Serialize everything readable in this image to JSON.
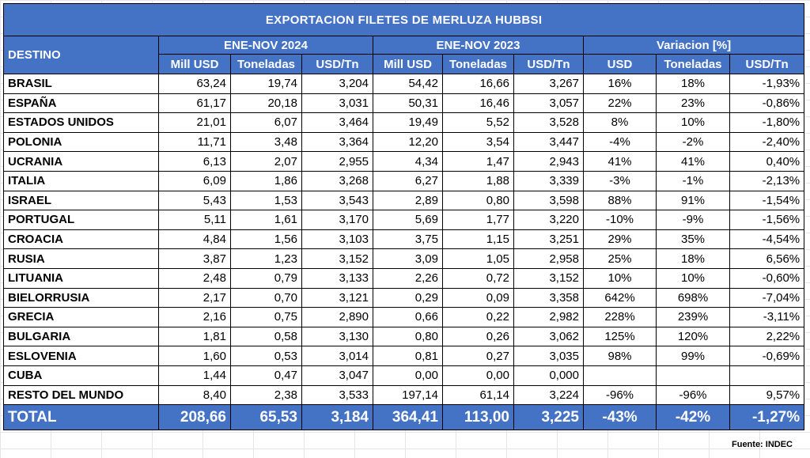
{
  "title": "EXPORTACION FILETES DE MERLUZA HUBBSI",
  "header": {
    "destino": "DESTINO",
    "group_2024": "ENE-NOV 2024",
    "group_2023": "ENE-NOV 2023",
    "group_var": "Variacion [%]",
    "sub_2024": [
      "Mill USD",
      "Toneladas",
      "USD/Tn"
    ],
    "sub_2023": [
      "Mill USD",
      "Toneladas",
      "USD/Tn"
    ],
    "sub_var": [
      "USD",
      "Toneladas",
      "USD/Tn"
    ]
  },
  "rows": [
    {
      "destino": "BRASIL",
      "m24": "63,24",
      "t24": "19,74",
      "u24": "3,204",
      "m23": "54,42",
      "t23": "16,66",
      "u23": "3,267",
      "vu": "16%",
      "vt": "18%",
      "vp": "-1,93%"
    },
    {
      "destino": "ESPAÑA",
      "m24": "61,17",
      "t24": "20,18",
      "u24": "3,031",
      "m23": "50,31",
      "t23": "16,46",
      "u23": "3,057",
      "vu": "22%",
      "vt": "23%",
      "vp": "-0,86%"
    },
    {
      "destino": "ESTADOS UNIDOS",
      "m24": "21,01",
      "t24": "6,07",
      "u24": "3,464",
      "m23": "19,49",
      "t23": "5,52",
      "u23": "3,528",
      "vu": "8%",
      "vt": "10%",
      "vp": "-1,80%"
    },
    {
      "destino": "POLONIA",
      "m24": "11,71",
      "t24": "3,48",
      "u24": "3,364",
      "m23": "12,20",
      "t23": "3,54",
      "u23": "3,447",
      "vu": "-4%",
      "vt": "-2%",
      "vp": "-2,40%"
    },
    {
      "destino": "UCRANIA",
      "m24": "6,13",
      "t24": "2,07",
      "u24": "2,955",
      "m23": "4,34",
      "t23": "1,47",
      "u23": "2,943",
      "vu": "41%",
      "vt": "41%",
      "vp": "0,40%"
    },
    {
      "destino": "ITALIA",
      "m24": "6,09",
      "t24": "1,86",
      "u24": "3,268",
      "m23": "6,27",
      "t23": "1,88",
      "u23": "3,339",
      "vu": "-3%",
      "vt": "-1%",
      "vp": "-2,13%"
    },
    {
      "destino": "ISRAEL",
      "m24": "5,43",
      "t24": "1,53",
      "u24": "3,543",
      "m23": "2,89",
      "t23": "0,80",
      "u23": "3,598",
      "vu": "88%",
      "vt": "91%",
      "vp": "-1,54%"
    },
    {
      "destino": "PORTUGAL",
      "m24": "5,11",
      "t24": "1,61",
      "u24": "3,170",
      "m23": "5,69",
      "t23": "1,77",
      "u23": "3,220",
      "vu": "-10%",
      "vt": "-9%",
      "vp": "-1,56%"
    },
    {
      "destino": "CROACIA",
      "m24": "4,84",
      "t24": "1,56",
      "u24": "3,103",
      "m23": "3,75",
      "t23": "1,15",
      "u23": "3,251",
      "vu": "29%",
      "vt": "35%",
      "vp": "-4,54%"
    },
    {
      "destino": "RUSIA",
      "m24": "3,87",
      "t24": "1,23",
      "u24": "3,152",
      "m23": "3,09",
      "t23": "1,05",
      "u23": "2,958",
      "vu": "25%",
      "vt": "18%",
      "vp": "6,56%"
    },
    {
      "destino": "LITUANIA",
      "m24": "2,48",
      "t24": "0,79",
      "u24": "3,133",
      "m23": "2,26",
      "t23": "0,72",
      "u23": "3,152",
      "vu": "10%",
      "vt": "10%",
      "vp": "-0,60%"
    },
    {
      "destino": "BIELORRUSIA",
      "m24": "2,17",
      "t24": "0,70",
      "u24": "3,121",
      "m23": "0,29",
      "t23": "0,09",
      "u23": "3,358",
      "vu": "642%",
      "vt": "698%",
      "vp": "-7,04%"
    },
    {
      "destino": "GRECIA",
      "m24": "2,16",
      "t24": "0,75",
      "u24": "2,890",
      "m23": "0,66",
      "t23": "0,22",
      "u23": "2,982",
      "vu": "228%",
      "vt": "239%",
      "vp": "-3,11%"
    },
    {
      "destino": "BULGARIA",
      "m24": "1,81",
      "t24": "0,58",
      "u24": "3,130",
      "m23": "0,80",
      "t23": "0,26",
      "u23": "3,062",
      "vu": "125%",
      "vt": "120%",
      "vp": "2,22%"
    },
    {
      "destino": "ESLOVENIA",
      "m24": "1,60",
      "t24": "0,53",
      "u24": "3,014",
      "m23": "0,81",
      "t23": "0,27",
      "u23": "3,035",
      "vu": "98%",
      "vt": "99%",
      "vp": "-0,69%"
    },
    {
      "destino": "CUBA",
      "m24": "1,44",
      "t24": "0,47",
      "u24": "3,047",
      "m23": "0,00",
      "t23": "0,00",
      "u23": "0,000",
      "vu": "",
      "vt": "",
      "vp": ""
    },
    {
      "destino": "RESTO DEL MUNDO",
      "m24": "8,40",
      "t24": "2,38",
      "u24": "3,533",
      "m23": "197,14",
      "t23": "61,14",
      "u23": "3,224",
      "vu": "-96%",
      "vt": "-96%",
      "vp": "9,57%"
    }
  ],
  "total": {
    "destino": "TOTAL",
    "m24": "208,66",
    "t24": "65,53",
    "u24": "3,184",
    "m23": "364,41",
    "t23": "113,00",
    "u23": "3,225",
    "vu": "-43%",
    "vt": "-42%",
    "vp": "-1,27%"
  },
  "source": "Fuente: INDEC",
  "colors": {
    "header_bg": "#4472c4",
    "header_text": "#ffffff"
  }
}
